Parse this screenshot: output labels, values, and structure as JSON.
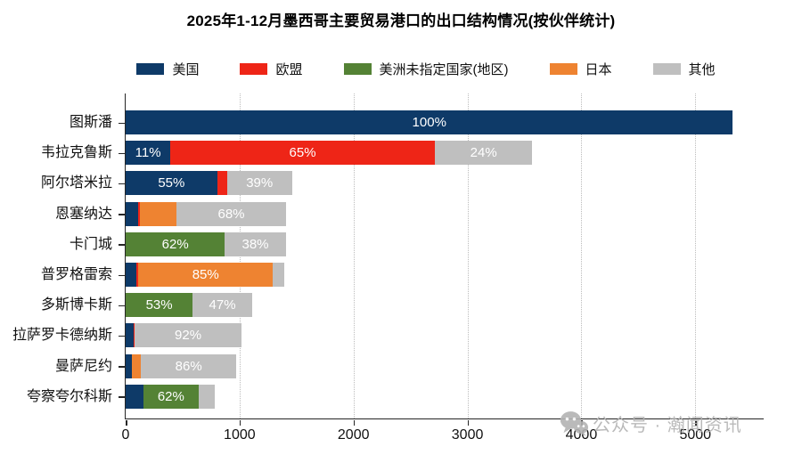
{
  "title": "2025年1-12月墨西哥主要贸易港口的出口结构情况(按伙伴统计)",
  "watermark": {
    "text": "公众号 · 瀚闻资讯",
    "icon": "wechat-chat-bubbles-icon",
    "color": "#b3b3b3"
  },
  "chart_data": {
    "type": "bar",
    "orientation": "horizontal",
    "stacked": true,
    "title": "2025年1-12月墨西哥主要贸易港口的出口结构情况(按伙伴统计)",
    "legend_position": "top",
    "grid": "vertical-dotted",
    "xlim": [
      0,
      5600
    ],
    "xticks": [
      0,
      1000,
      2000,
      3000,
      4000,
      5000
    ],
    "series": [
      {
        "name": "美国",
        "color": "#0e3a68"
      },
      {
        "name": "欧盟",
        "color": "#ee2517"
      },
      {
        "name": "美洲未指定国家(地区)",
        "color": "#548235"
      },
      {
        "name": "日本",
        "color": "#ee8331"
      },
      {
        "name": "其他",
        "color": "#bfbfbf"
      }
    ],
    "rows": [
      {
        "category": "图斯潘",
        "total": 5330,
        "segments": [
          {
            "series": "美国",
            "pct": 100,
            "value": 5330,
            "label": "100%"
          }
        ]
      },
      {
        "category": "韦拉克鲁斯",
        "total": 3570,
        "segments": [
          {
            "series": "美国",
            "pct": 11,
            "value": 393,
            "label": "11%"
          },
          {
            "series": "欧盟",
            "pct": 65,
            "value": 2321,
            "label": "65%"
          },
          {
            "series": "其他",
            "pct": 24,
            "value": 857,
            "label": "24%"
          }
        ]
      },
      {
        "category": "阿尔塔米拉",
        "total": 1460,
        "segments": [
          {
            "series": "美国",
            "pct": 55,
            "value": 803,
            "label": "55%"
          },
          {
            "series": "欧盟",
            "pct": 6,
            "value": 88
          },
          {
            "series": "其他",
            "pct": 39,
            "value": 569,
            "label": "39%"
          }
        ]
      },
      {
        "category": "恩塞纳达",
        "total": 1405,
        "segments": [
          {
            "series": "美国",
            "pct": 8,
            "value": 112
          },
          {
            "series": "欧盟",
            "pct": 1,
            "value": 14
          },
          {
            "series": "日本",
            "pct": 23,
            "value": 323
          },
          {
            "series": "其他",
            "pct": 68,
            "value": 956,
            "label": "68%"
          }
        ]
      },
      {
        "category": "卡门城",
        "total": 1405,
        "segments": [
          {
            "series": "美洲未指定国家(地区)",
            "pct": 62,
            "value": 871,
            "label": "62%"
          },
          {
            "series": "其他",
            "pct": 38,
            "value": 534,
            "label": "38%"
          }
        ]
      },
      {
        "category": "普罗格雷索",
        "total": 1390,
        "segments": [
          {
            "series": "美国",
            "pct": 7,
            "value": 97
          },
          {
            "series": "欧盟",
            "pct": 1,
            "value": 14
          },
          {
            "series": "日本",
            "pct": 85,
            "value": 1182,
            "label": "85%"
          },
          {
            "series": "其他",
            "pct": 7,
            "value": 97
          }
        ]
      },
      {
        "category": "多斯博卡斯",
        "total": 1110,
        "segments": [
          {
            "series": "美洲未指定国家(地区)",
            "pct": 53,
            "value": 588,
            "label": "53%"
          },
          {
            "series": "其他",
            "pct": 47,
            "value": 522,
            "label": "47%"
          }
        ]
      },
      {
        "category": "拉萨罗卡德纳斯",
        "total": 1015,
        "segments": [
          {
            "series": "美国",
            "pct": 7,
            "value": 71
          },
          {
            "series": "欧盟",
            "pct": 1,
            "value": 10
          },
          {
            "series": "其他",
            "pct": 92,
            "value": 934,
            "label": "92%"
          }
        ]
      },
      {
        "category": "曼萨尼约",
        "total": 970,
        "segments": [
          {
            "series": "美国",
            "pct": 6,
            "value": 58
          },
          {
            "series": "日本",
            "pct": 8,
            "value": 78
          },
          {
            "series": "其他",
            "pct": 86,
            "value": 834,
            "label": "86%"
          }
        ]
      },
      {
        "category": "夸察夸尔科斯",
        "total": 780,
        "segments": [
          {
            "series": "美国",
            "pct": 20,
            "value": 156
          },
          {
            "series": "美洲未指定国家(地区)",
            "pct": 62,
            "value": 484,
            "label": "62%"
          },
          {
            "series": "其他",
            "pct": 18,
            "value": 140
          }
        ]
      }
    ]
  }
}
